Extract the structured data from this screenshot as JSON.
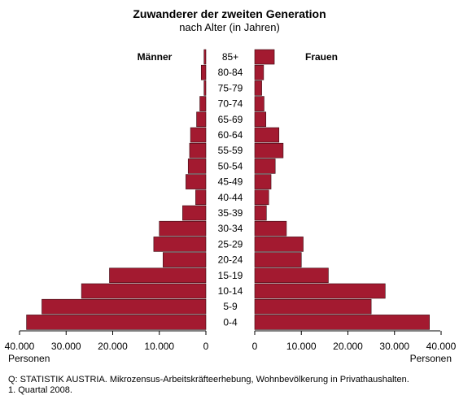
{
  "chart_data": {
    "type": "bar",
    "title": "Zuwanderer der zweiten Generation",
    "subtitle": "nach Alter (in Jahren)",
    "left_label": "Männer",
    "right_label": "Frauen",
    "categories": [
      "85+",
      "80-84",
      "75-79",
      "70-74",
      "65-69",
      "60-64",
      "55-59",
      "50-54",
      "45-49",
      "40-44",
      "35-39",
      "30-34",
      "25-29",
      "20-24",
      "15-19",
      "10-14",
      "5-9",
      "0-4"
    ],
    "series": [
      {
        "name": "Männer",
        "values": [
          400,
          1000,
          400,
          1300,
          2000,
          3300,
          3500,
          3800,
          4300,
          2200,
          5000,
          10000,
          11200,
          9200,
          20700,
          26700,
          35200,
          38500
        ]
      },
      {
        "name": "Frauen",
        "values": [
          4200,
          1900,
          1500,
          2000,
          2400,
          5200,
          6100,
          4400,
          3500,
          3000,
          2500,
          6800,
          10400,
          10000,
          15800,
          28000,
          25000,
          37500
        ]
      }
    ],
    "xlim": [
      0,
      40000
    ],
    "left_ticks": [
      "40.000",
      "30.000",
      "20.000",
      "10.000",
      "0"
    ],
    "right_ticks": [
      "0",
      "10.000",
      "20.000",
      "30.000",
      "40.000"
    ],
    "left_unit": "Personen",
    "right_unit": "Personen",
    "bar_color": "#a31a30"
  },
  "source_line1": "Q: STATISTIK AUSTRIA. Mikrozensus-Arbeitskräfteerhebung, Wohnbevölkerung in Privathaushalten.",
  "source_line2": "1. Quartal 2008."
}
